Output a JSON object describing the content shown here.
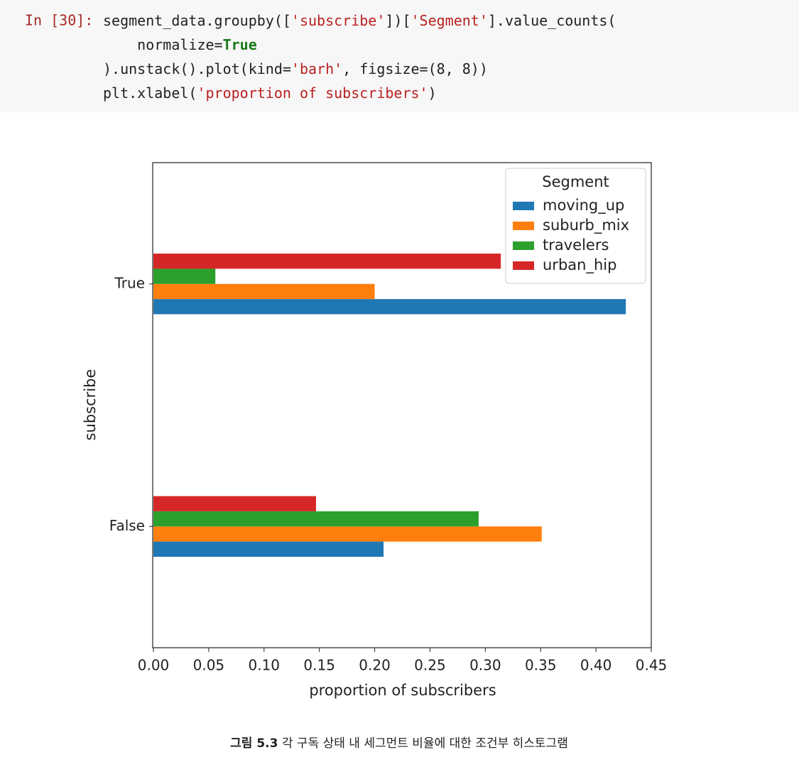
{
  "code": {
    "prompt": "In [30]:",
    "lines": [
      [
        {
          "text": "segment_data.groupby([",
          "color": "#222222"
        },
        {
          "text": "'subscribe'",
          "color": "#ba2121"
        },
        {
          "text": "])[",
          "color": "#222222"
        },
        {
          "text": "'Segment'",
          "color": "#ba2121"
        },
        {
          "text": "].value_counts(",
          "color": "#222222"
        }
      ],
      [
        {
          "text": "    normalize=",
          "color": "#222222"
        },
        {
          "text": "True",
          "color": "#1a7a1a"
        }
      ],
      [
        {
          "text": ").unstack().plot(kind=",
          "color": "#222222"
        },
        {
          "text": "'barh'",
          "color": "#ba2121"
        },
        {
          "text": ", figsize=(8, 8))",
          "color": "#222222"
        }
      ],
      [
        {
          "text": "plt.xlabel(",
          "color": "#222222"
        },
        {
          "text": "'proportion of subscribers'",
          "color": "#ba2121"
        },
        {
          "text": ")",
          "color": "#222222"
        }
      ]
    ]
  },
  "chart_data": {
    "type": "barh",
    "xlabel": "proportion of subscribers",
    "ylabel": "subscribe",
    "categories": [
      "False",
      "True"
    ],
    "series": [
      {
        "name": "moving_up",
        "color": "#1f77b4",
        "values": [
          0.208,
          0.427
        ]
      },
      {
        "name": "suburb_mix",
        "color": "#ff7f0e",
        "values": [
          0.351,
          0.2
        ]
      },
      {
        "name": "travelers",
        "color": "#2ca02c",
        "values": [
          0.294,
          0.056
        ]
      },
      {
        "name": "urban_hip",
        "color": "#d62728",
        "values": [
          0.147,
          0.314
        ]
      }
    ],
    "xlim": [
      0,
      0.45
    ],
    "xticks": [
      {
        "value": 0,
        "label": "0.00"
      },
      {
        "value": 0.05,
        "label": "0.05"
      },
      {
        "value": 0.1,
        "label": "0.10"
      },
      {
        "value": 0.15,
        "label": "0.15"
      },
      {
        "value": 0.2,
        "label": "0.20"
      },
      {
        "value": 0.25,
        "label": "0.25"
      },
      {
        "value": 0.3,
        "label": "0.30"
      },
      {
        "value": 0.35,
        "label": "0.35"
      },
      {
        "value": 0.4,
        "label": "0.40"
      },
      {
        "value": 0.45,
        "label": "0.45"
      }
    ],
    "legend_title": "Segment",
    "legend_loc": "upper right",
    "grid": false
  },
  "caption": {
    "label": "그림 5.3",
    "text": "각 구독 상태 내 세그먼트 비율에 대한 조건부 히스토그램"
  }
}
